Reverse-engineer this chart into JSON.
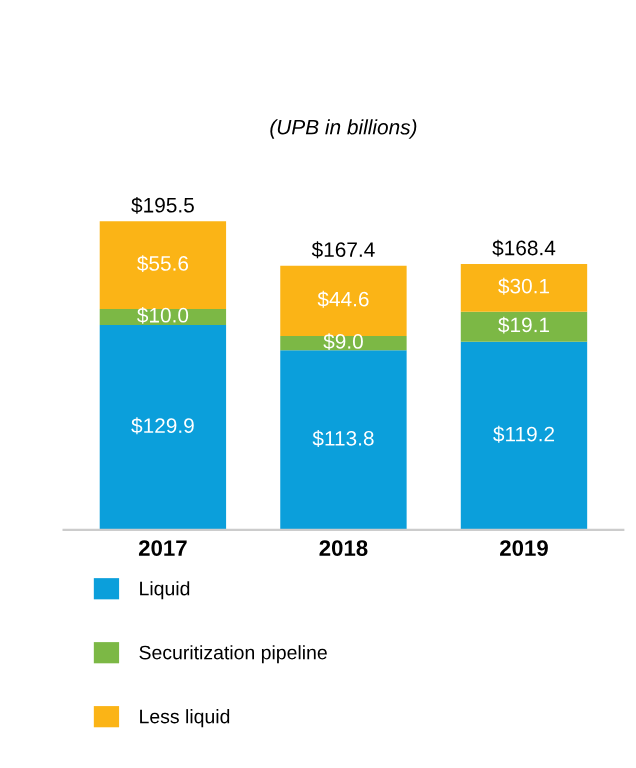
{
  "chart_data": {
    "type": "bar",
    "title": "(UPB in billions)",
    "stacked": true,
    "categories": [
      "2017",
      "2018",
      "2019"
    ],
    "series": [
      {
        "name": "Liquid",
        "color": "#0b9fdb",
        "values": [
          129.9,
          113.8,
          119.2
        ],
        "value_labels": [
          "$129.9",
          "$113.8",
          "$119.2"
        ]
      },
      {
        "name": "Securitization pipeline",
        "color": "#7cb845",
        "values": [
          10.0,
          9.0,
          19.1
        ],
        "value_labels": [
          "$10.0",
          "$9.0",
          "$19.1"
        ]
      },
      {
        "name": "Less liquid",
        "color": "#fbb416",
        "values": [
          55.6,
          44.6,
          30.1
        ],
        "value_labels": [
          "$55.6",
          "$44.6",
          "$30.1"
        ]
      }
    ],
    "totals": [
      "$195.5",
      "$167.4",
      "$168.4"
    ],
    "legend": "bottom",
    "grid": false
  }
}
